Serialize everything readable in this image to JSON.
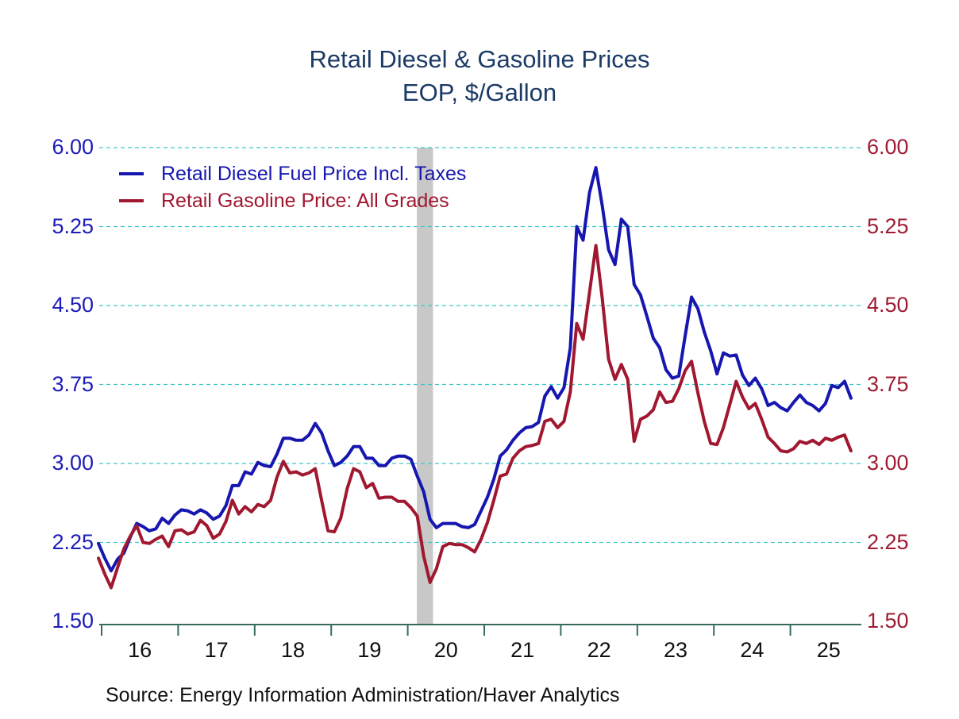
{
  "title": {
    "line1": "Retail Diesel & Gasoline Prices",
    "line2": "EOP, $/Gallon"
  },
  "source": "Source:  Energy Information Administration/Haver Analytics",
  "colors": {
    "title": "#1B3A66",
    "diesel_line": "#1717B0",
    "gasoline_line": "#A01830",
    "left_axis_labels": "#1C1CB8",
    "right_axis_labels": "#9E1B32",
    "gridline": "#3FC8C8",
    "axis_line": "#356B5F",
    "recession_band": "#C8C8C8",
    "x_axis_labels": "#111111"
  },
  "legend": {
    "items": [
      {
        "label": "Retail Diesel Fuel Price Incl. Taxes",
        "color": "#1717B0"
      },
      {
        "label": "Retail Gasoline Price: All Grades",
        "color": "#A01830"
      }
    ]
  },
  "chart_data": {
    "type": "line",
    "title": "Retail Diesel & Gasoline Prices",
    "subtitle": "EOP, $/Gallon",
    "ylabel": "$/Gallon",
    "ylim": [
      1.5,
      6.0
    ],
    "grid": "horizontal-dashed",
    "legend_position": "top-left-inside",
    "y_axis": {
      "ticks": [
        6.0,
        5.25,
        4.5,
        3.75,
        3.0,
        2.25,
        1.5
      ],
      "tick_labels": [
        "6.00",
        "5.25",
        "4.50",
        "3.75",
        "3.00",
        "2.25",
        "1.50"
      ]
    },
    "x_axis": {
      "tick_years": [
        2016,
        2017,
        2018,
        2019,
        2020,
        2021,
        2022,
        2023,
        2024,
        2025
      ],
      "tick_labels": [
        "16",
        "17",
        "18",
        "19",
        "20",
        "21",
        "22",
        "23",
        "24",
        "25"
      ]
    },
    "recession_band": {
      "from": 2020.12,
      "to": 2020.33
    },
    "series": [
      {
        "name": "Retail Diesel Fuel Price Incl. Taxes",
        "color": "#1717B0",
        "x_start": 2015.9583,
        "x_step_years": 0.0833333,
        "values": [
          2.24,
          2.1,
          1.98,
          2.09,
          2.15,
          2.3,
          2.43,
          2.4,
          2.36,
          2.38,
          2.48,
          2.43,
          2.51,
          2.56,
          2.55,
          2.52,
          2.56,
          2.53,
          2.47,
          2.5,
          2.6,
          2.79,
          2.79,
          2.92,
          2.9,
          3.01,
          2.98,
          2.97,
          3.09,
          3.24,
          3.24,
          3.22,
          3.22,
          3.27,
          3.38,
          3.29,
          3.12,
          2.98,
          3.01,
          3.07,
          3.16,
          3.16,
          3.05,
          3.05,
          2.98,
          2.98,
          3.05,
          3.07,
          3.07,
          3.04,
          2.88,
          2.73,
          2.47,
          2.39,
          2.43,
          2.43,
          2.43,
          2.4,
          2.39,
          2.42,
          2.55,
          2.68,
          2.85,
          3.07,
          3.13,
          3.22,
          3.29,
          3.34,
          3.35,
          3.39,
          3.64,
          3.73,
          3.62,
          3.72,
          4.1,
          5.25,
          5.12,
          5.57,
          5.81,
          5.45,
          5.03,
          4.89,
          5.32,
          5.25,
          4.7,
          4.6,
          4.4,
          4.19,
          4.1,
          3.89,
          3.81,
          3.83,
          4.21,
          4.58,
          4.47,
          4.25,
          4.07,
          3.85,
          4.05,
          4.02,
          4.03,
          3.84,
          3.74,
          3.81,
          3.71,
          3.55,
          3.58,
          3.53,
          3.5,
          3.58,
          3.65,
          3.58,
          3.55,
          3.5,
          3.57,
          3.74,
          3.72,
          3.78,
          3.62
        ]
      },
      {
        "name": "Retail Gasoline Price: All Grades",
        "color": "#A01830",
        "x_start": 2015.9583,
        "x_step_years": 0.0833333,
        "values": [
          2.1,
          1.95,
          1.82,
          2.01,
          2.19,
          2.31,
          2.41,
          2.25,
          2.24,
          2.28,
          2.31,
          2.21,
          2.36,
          2.37,
          2.33,
          2.35,
          2.46,
          2.41,
          2.29,
          2.33,
          2.45,
          2.65,
          2.52,
          2.59,
          2.54,
          2.61,
          2.59,
          2.65,
          2.87,
          3.02,
          2.91,
          2.92,
          2.89,
          2.91,
          2.95,
          2.65,
          2.36,
          2.35,
          2.48,
          2.76,
          2.95,
          2.92,
          2.77,
          2.81,
          2.67,
          2.68,
          2.68,
          2.64,
          2.64,
          2.58,
          2.5,
          2.12,
          1.87,
          2.0,
          2.21,
          2.24,
          2.23,
          2.23,
          2.2,
          2.16,
          2.28,
          2.44,
          2.65,
          2.88,
          2.9,
          3.05,
          3.12,
          3.16,
          3.17,
          3.19,
          3.4,
          3.42,
          3.34,
          3.4,
          3.68,
          4.33,
          4.18,
          4.62,
          5.07,
          4.57,
          3.99,
          3.8,
          3.94,
          3.8,
          3.21,
          3.42,
          3.45,
          3.51,
          3.68,
          3.58,
          3.59,
          3.71,
          3.88,
          3.97,
          3.67,
          3.4,
          3.19,
          3.18,
          3.34,
          3.56,
          3.78,
          3.63,
          3.52,
          3.57,
          3.42,
          3.25,
          3.19,
          3.12,
          3.11,
          3.14,
          3.21,
          3.19,
          3.22,
          3.18,
          3.24,
          3.22,
          3.25,
          3.27,
          3.12
        ]
      }
    ]
  }
}
